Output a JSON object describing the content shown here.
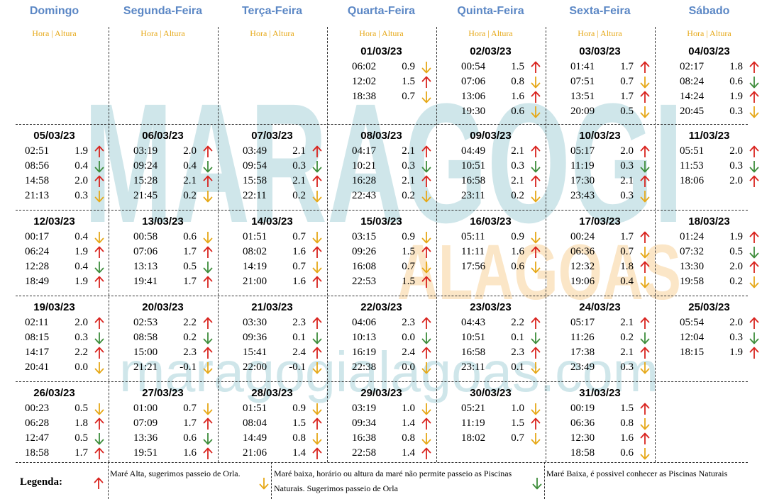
{
  "watermark": {
    "main": "MARAGOGI",
    "secondary": "ALAGOAS",
    "url": "maragogialagoas.com",
    "colors": {
      "teal": "#cfe6ea",
      "orange": "#fbe6c7"
    }
  },
  "days": [
    "Domingo",
    "Segunda-Feira",
    "Terça-Feira",
    "Quarta-Feira",
    "Quinta-Feira",
    "Sexta-Feira",
    "Sábado"
  ],
  "cell_label": "Hora | Altura",
  "arrow_colors": {
    "up": "#d9231e",
    "down_yellow": "#e6a817",
    "down_green": "#3d8c3a"
  },
  "weeks": [
    [
      null,
      null,
      null,
      {
        "date": "01/03/23",
        "tides": [
          {
            "time": "06:02",
            "height": "0.9",
            "arrow": "down_yellow"
          },
          {
            "time": "12:02",
            "height": "1.5",
            "arrow": "up"
          },
          {
            "time": "18:38",
            "height": "0.7",
            "arrow": "down_yellow"
          }
        ]
      },
      {
        "date": "02/03/23",
        "tides": [
          {
            "time": "00:54",
            "height": "1.5",
            "arrow": "up"
          },
          {
            "time": "07:06",
            "height": "0.8",
            "arrow": "down_yellow"
          },
          {
            "time": "13:06",
            "height": "1.6",
            "arrow": "up"
          },
          {
            "time": "19:30",
            "height": "0.6",
            "arrow": "down_yellow"
          }
        ]
      },
      {
        "date": "03/03/23",
        "tides": [
          {
            "time": "01:41",
            "height": "1.7",
            "arrow": "up"
          },
          {
            "time": "07:51",
            "height": "0.7",
            "arrow": "down_yellow"
          },
          {
            "time": "13:51",
            "height": "1.7",
            "arrow": "up"
          },
          {
            "time": "20:09",
            "height": "0.5",
            "arrow": "down_yellow"
          }
        ]
      },
      {
        "date": "04/03/23",
        "tides": [
          {
            "time": "02:17",
            "height": "1.8",
            "arrow": "up"
          },
          {
            "time": "08:24",
            "height": "0.6",
            "arrow": "down_green"
          },
          {
            "time": "14:24",
            "height": "1.9",
            "arrow": "up"
          },
          {
            "time": "20:45",
            "height": "0.3",
            "arrow": "down_yellow"
          }
        ]
      }
    ],
    [
      {
        "date": "05/03/23",
        "tides": [
          {
            "time": "02:51",
            "height": "1.9",
            "arrow": "up"
          },
          {
            "time": "08:56",
            "height": "0.4",
            "arrow": "down_green"
          },
          {
            "time": "14:58",
            "height": "2.0",
            "arrow": "up"
          },
          {
            "time": "21:13",
            "height": "0.3",
            "arrow": "down_yellow"
          }
        ]
      },
      {
        "date": "06/03/23",
        "tides": [
          {
            "time": "03:19",
            "height": "2.0",
            "arrow": "up"
          },
          {
            "time": "09:24",
            "height": "0.4",
            "arrow": "down_green"
          },
          {
            "time": "15:28",
            "height": "2.1",
            "arrow": "up"
          },
          {
            "time": "21:45",
            "height": "0.2",
            "arrow": "down_yellow"
          }
        ]
      },
      {
        "date": "07/03/23",
        "tides": [
          {
            "time": "03:49",
            "height": "2.1",
            "arrow": "up"
          },
          {
            "time": "09:54",
            "height": "0.3",
            "arrow": "down_green"
          },
          {
            "time": "15:58",
            "height": "2.1",
            "arrow": "up"
          },
          {
            "time": "22:11",
            "height": "0.2",
            "arrow": "down_yellow"
          }
        ]
      },
      {
        "date": "08/03/23",
        "tides": [
          {
            "time": "04:17",
            "height": "2.1",
            "arrow": "up"
          },
          {
            "time": "10:21",
            "height": "0.3",
            "arrow": "down_green"
          },
          {
            "time": "16:28",
            "height": "2.1",
            "arrow": "up"
          },
          {
            "time": "22:43",
            "height": "0.2",
            "arrow": "down_yellow"
          }
        ]
      },
      {
        "date": "09/03/23",
        "tides": [
          {
            "time": "04:49",
            "height": "2.1",
            "arrow": "up"
          },
          {
            "time": "10:51",
            "height": "0.3",
            "arrow": "down_green"
          },
          {
            "time": "16:58",
            "height": "2.1",
            "arrow": "up"
          },
          {
            "time": "23:11",
            "height": "0.2",
            "arrow": "down_yellow"
          }
        ]
      },
      {
        "date": "10/03/23",
        "tides": [
          {
            "time": "05:17",
            "height": "2.0",
            "arrow": "up"
          },
          {
            "time": "11:19",
            "height": "0.3",
            "arrow": "down_green"
          },
          {
            "time": "17:30",
            "height": "2.1",
            "arrow": "up"
          },
          {
            "time": "23:43",
            "height": "0.3",
            "arrow": "down_yellow"
          }
        ]
      },
      {
        "date": "11/03/23",
        "tides": [
          {
            "time": "05:51",
            "height": "2.0",
            "arrow": "up"
          },
          {
            "time": "11:53",
            "height": "0.3",
            "arrow": "down_green"
          },
          {
            "time": "18:06",
            "height": "2.0",
            "arrow": "up"
          }
        ]
      }
    ],
    [
      {
        "date": "12/03/23",
        "tides": [
          {
            "time": "00:17",
            "height": "0.4",
            "arrow": "down_yellow"
          },
          {
            "time": "06:24",
            "height": "1.9",
            "arrow": "up"
          },
          {
            "time": "12:28",
            "height": "0.4",
            "arrow": "down_green"
          },
          {
            "time": "18:49",
            "height": "1.9",
            "arrow": "up"
          }
        ]
      },
      {
        "date": "13/03/23",
        "tides": [
          {
            "time": "00:58",
            "height": "0.6",
            "arrow": "down_yellow"
          },
          {
            "time": "07:06",
            "height": "1.7",
            "arrow": "up"
          },
          {
            "time": "13:13",
            "height": "0.5",
            "arrow": "down_green"
          },
          {
            "time": "19:41",
            "height": "1.7",
            "arrow": "up"
          }
        ]
      },
      {
        "date": "14/03/23",
        "tides": [
          {
            "time": "01:51",
            "height": "0.7",
            "arrow": "down_yellow"
          },
          {
            "time": "08:02",
            "height": "1.6",
            "arrow": "up"
          },
          {
            "time": "14:19",
            "height": "0.7",
            "arrow": "down_yellow"
          },
          {
            "time": "21:00",
            "height": "1.6",
            "arrow": "up"
          }
        ]
      },
      {
        "date": "15/03/23",
        "tides": [
          {
            "time": "03:15",
            "height": "0.9",
            "arrow": "down_yellow"
          },
          {
            "time": "09:26",
            "height": "1.5",
            "arrow": "up"
          },
          {
            "time": "16:08",
            "height": "0.7",
            "arrow": "down_yellow"
          },
          {
            "time": "22:53",
            "height": "1.5",
            "arrow": "up"
          }
        ]
      },
      {
        "date": "16/03/23",
        "tides": [
          {
            "time": "05:11",
            "height": "0.9",
            "arrow": "down_yellow"
          },
          {
            "time": "11:11",
            "height": "1.6",
            "arrow": "up"
          },
          {
            "time": "17:56",
            "height": "0.6",
            "arrow": "down_yellow"
          }
        ]
      },
      {
        "date": "17/03/23",
        "tides": [
          {
            "time": "00:24",
            "height": "1.7",
            "arrow": "up"
          },
          {
            "time": "06:36",
            "height": "0.7",
            "arrow": "down_yellow"
          },
          {
            "time": "12:32",
            "height": "1.8",
            "arrow": "up"
          },
          {
            "time": "19:06",
            "height": "0.4",
            "arrow": "down_yellow"
          }
        ]
      },
      {
        "date": "18/03/23",
        "tides": [
          {
            "time": "01:24",
            "height": "1.9",
            "arrow": "up"
          },
          {
            "time": "07:32",
            "height": "0.5",
            "arrow": "down_green"
          },
          {
            "time": "13:30",
            "height": "2.0",
            "arrow": "up"
          },
          {
            "time": "19:58",
            "height": "0.2",
            "arrow": "down_yellow"
          }
        ]
      }
    ],
    [
      {
        "date": "19/03/23",
        "tides": [
          {
            "time": "02:11",
            "height": "2.0",
            "arrow": "up"
          },
          {
            "time": "08:15",
            "height": "0.3",
            "arrow": "down_green"
          },
          {
            "time": "14:17",
            "height": "2.2",
            "arrow": "up"
          },
          {
            "time": "20:41",
            "height": "0.0",
            "arrow": "down_yellow"
          }
        ]
      },
      {
        "date": "20/03/23",
        "tides": [
          {
            "time": "02:53",
            "height": "2.2",
            "arrow": "up"
          },
          {
            "time": "08:58",
            "height": "0.2",
            "arrow": "down_green"
          },
          {
            "time": "15:00",
            "height": "2.3",
            "arrow": "up"
          },
          {
            "time": "21:21",
            "height": "-0.1",
            "arrow": "down_yellow"
          }
        ]
      },
      {
        "date": "21/03/23",
        "tides": [
          {
            "time": "03:30",
            "height": "2.3",
            "arrow": "up"
          },
          {
            "time": "09:36",
            "height": "0.1",
            "arrow": "down_green"
          },
          {
            "time": "15:41",
            "height": "2.4",
            "arrow": "up"
          },
          {
            "time": "22:00",
            "height": "-0.1",
            "arrow": "down_yellow"
          }
        ]
      },
      {
        "date": "22/03/23",
        "tides": [
          {
            "time": "04:06",
            "height": "2.3",
            "arrow": "up"
          },
          {
            "time": "10:13",
            "height": "0.0",
            "arrow": "down_green"
          },
          {
            "time": "16:19",
            "height": "2.4",
            "arrow": "up"
          },
          {
            "time": "22:38",
            "height": "0.0",
            "arrow": "down_yellow"
          }
        ]
      },
      {
        "date": "23/03/23",
        "tides": [
          {
            "time": "04:43",
            "height": "2.2",
            "arrow": "up"
          },
          {
            "time": "10:51",
            "height": "0.1",
            "arrow": "down_green"
          },
          {
            "time": "16:58",
            "height": "2.3",
            "arrow": "up"
          },
          {
            "time": "23:11",
            "height": "0.1",
            "arrow": "down_yellow"
          }
        ]
      },
      {
        "date": "24/03/23",
        "tides": [
          {
            "time": "05:17",
            "height": "2.1",
            "arrow": "up"
          },
          {
            "time": "11:26",
            "height": "0.2",
            "arrow": "down_green"
          },
          {
            "time": "17:38",
            "height": "2.1",
            "arrow": "up"
          },
          {
            "time": "23:49",
            "height": "0.3",
            "arrow": "down_yellow"
          }
        ]
      },
      {
        "date": "25/03/23",
        "tides": [
          {
            "time": "05:54",
            "height": "2.0",
            "arrow": "up"
          },
          {
            "time": "12:04",
            "height": "0.3",
            "arrow": "down_green"
          },
          {
            "time": "18:15",
            "height": "1.9",
            "arrow": "up"
          }
        ]
      }
    ],
    [
      {
        "date": "26/03/23",
        "tides": [
          {
            "time": "00:23",
            "height": "0.5",
            "arrow": "down_yellow"
          },
          {
            "time": "06:28",
            "height": "1.8",
            "arrow": "up"
          },
          {
            "time": "12:47",
            "height": "0.5",
            "arrow": "down_green"
          },
          {
            "time": "18:58",
            "height": "1.7",
            "arrow": "up"
          }
        ]
      },
      {
        "date": "27/03/23",
        "tides": [
          {
            "time": "01:00",
            "height": "0.7",
            "arrow": "down_yellow"
          },
          {
            "time": "07:09",
            "height": "1.7",
            "arrow": "up"
          },
          {
            "time": "13:36",
            "height": "0.6",
            "arrow": "down_green"
          },
          {
            "time": "19:51",
            "height": "1.6",
            "arrow": "up"
          }
        ]
      },
      {
        "date": "28/03/23",
        "tides": [
          {
            "time": "01:51",
            "height": "0.9",
            "arrow": "down_yellow"
          },
          {
            "time": "08:04",
            "height": "1.5",
            "arrow": "up"
          },
          {
            "time": "14:49",
            "height": "0.8",
            "arrow": "down_yellow"
          },
          {
            "time": "21:06",
            "height": "1.4",
            "arrow": "up"
          }
        ]
      },
      {
        "date": "29/03/23",
        "tides": [
          {
            "time": "03:19",
            "height": "1.0",
            "arrow": "down_yellow"
          },
          {
            "time": "09:34",
            "height": "1.4",
            "arrow": "up"
          },
          {
            "time": "16:38",
            "height": "0.8",
            "arrow": "down_yellow"
          },
          {
            "time": "22:58",
            "height": "1.4",
            "arrow": "up"
          }
        ]
      },
      {
        "date": "30/03/23",
        "tides": [
          {
            "time": "05:21",
            "height": "1.0",
            "arrow": "down_yellow"
          },
          {
            "time": "11:19",
            "height": "1.5",
            "arrow": "up"
          },
          {
            "time": "18:02",
            "height": "0.7",
            "arrow": "down_yellow"
          }
        ]
      },
      {
        "date": "31/03/23",
        "tides": [
          {
            "time": "00:19",
            "height": "1.5",
            "arrow": "up"
          },
          {
            "time": "06:36",
            "height": "0.8",
            "arrow": "down_yellow"
          },
          {
            "time": "12:30",
            "height": "1.6",
            "arrow": "up"
          },
          {
            "time": "18:58",
            "height": "0.6",
            "arrow": "down_yellow"
          }
        ]
      },
      null
    ]
  ],
  "legend": {
    "title": "Legenda:",
    "items": [
      {
        "arrow": "up",
        "text": "Maré Alta, sugerimos passeio de Orla."
      },
      {
        "arrow": "down_yellow",
        "text": "Maré baixa, horário ou altura da maré não permite passeio as Piscinas Naturais. Sugerimos passeio de Orla"
      },
      {
        "arrow": "down_green",
        "text": "Maré Baixa, é possivel conhecer as Piscinas Naturais"
      }
    ]
  }
}
